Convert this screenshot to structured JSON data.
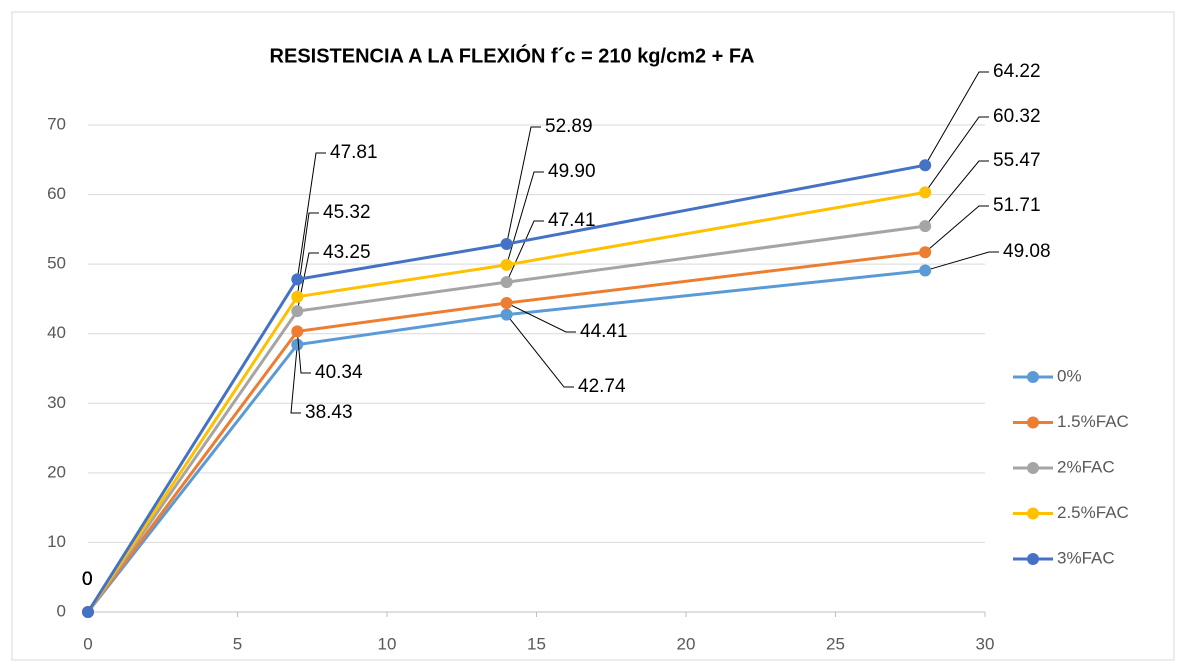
{
  "chart_data": {
    "type": "line",
    "title": "RESISTENCIA A LA FLEXIÓN f´c = 210 kg/cm2 + FA",
    "x": [
      0,
      7,
      14,
      28
    ],
    "xlim": [
      0,
      30
    ],
    "xticks": [
      0,
      5,
      10,
      15,
      20,
      25,
      30
    ],
    "ylim": [
      0,
      70
    ],
    "yticks": [
      0,
      10,
      20,
      30,
      40,
      50,
      60,
      70
    ],
    "grid": true,
    "legend": "right",
    "series": [
      {
        "name": "0%",
        "color": "#5b9bd5",
        "values": [
          0,
          38.43,
          42.74,
          49.08
        ],
        "value_labels": [
          "0",
          "38.43",
          "42.74",
          "49.08"
        ]
      },
      {
        "name": "1.5%FAC",
        "color": "#ed7d31",
        "values": [
          0,
          40.34,
          44.41,
          51.71
        ],
        "value_labels": [
          "0",
          "40.34",
          "44.41",
          "51.71"
        ]
      },
      {
        "name": "2%FAC",
        "color": "#a5a5a5",
        "values": [
          0,
          43.25,
          47.41,
          55.47
        ],
        "value_labels": [
          "0",
          "43.25",
          "47.41",
          "55.47"
        ]
      },
      {
        "name": "2.5%FAC",
        "color": "#ffc000",
        "values": [
          0,
          45.32,
          49.9,
          60.32
        ],
        "value_labels": [
          "0",
          "45.32",
          "49.90",
          "60.32"
        ]
      },
      {
        "name": "3%FAC",
        "color": "#4472c4",
        "values": [
          0,
          47.81,
          52.89,
          64.22
        ],
        "value_labels": [
          "0",
          "47.81",
          "52.89",
          "64.22"
        ]
      }
    ]
  }
}
